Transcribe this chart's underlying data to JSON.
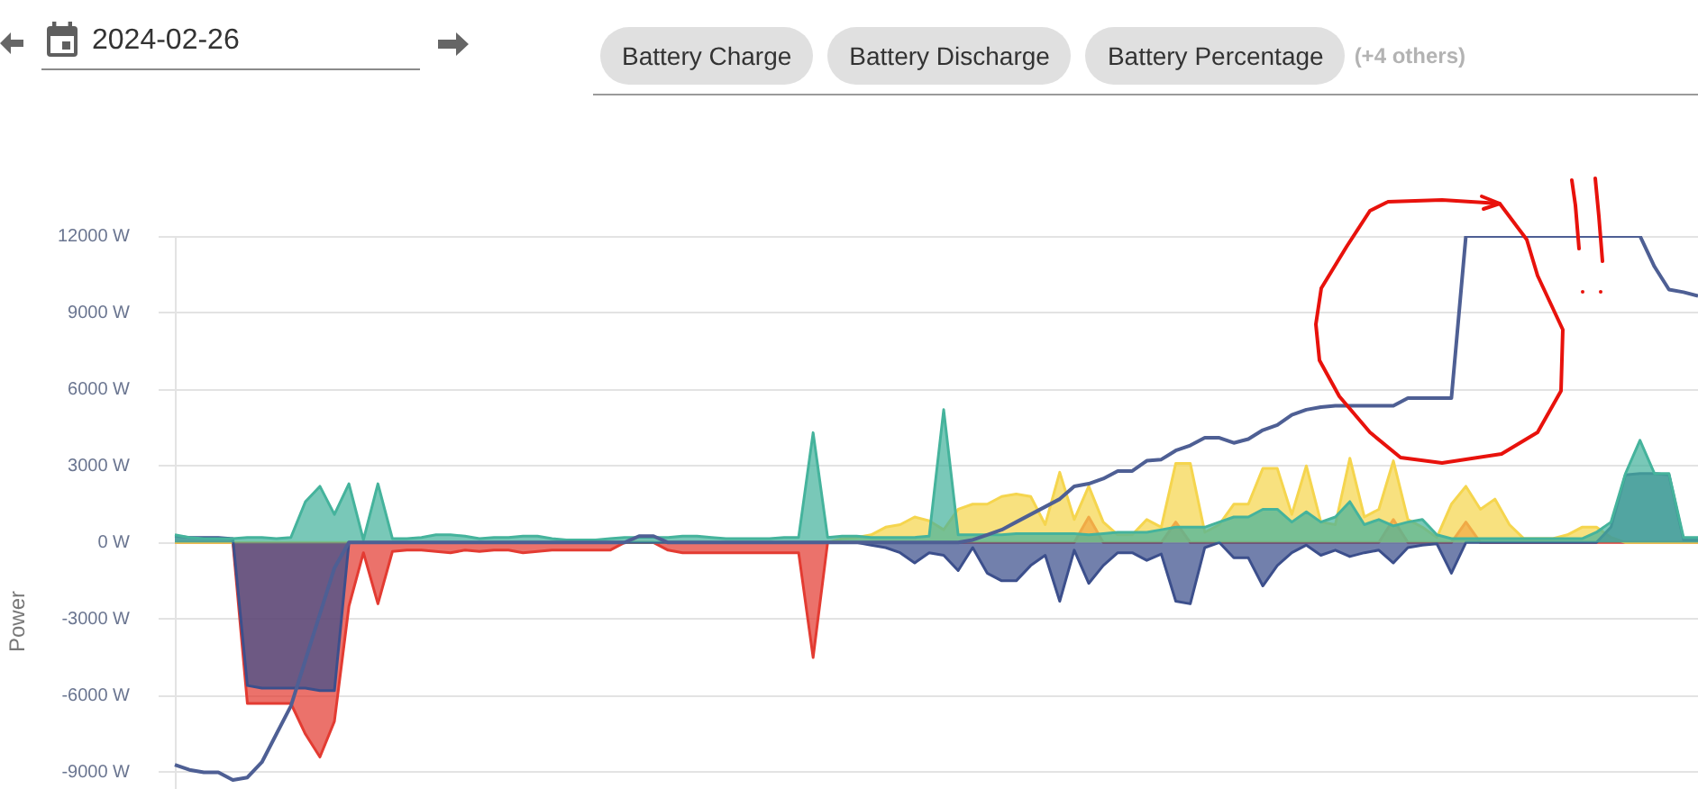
{
  "chart_data": {
    "type": "area",
    "title": "2024-02-26",
    "ylabel": "Power",
    "annotations": [
      "Battery Charge",
      "Battery Discharge",
      "Battery Percentage",
      "(+4 others)"
    ],
    "categories": [
      null,
      null,
      null,
      null,
      null,
      null,
      null,
      null,
      null,
      null,
      null,
      null,
      null,
      null,
      null,
      null,
      null,
      null,
      null,
      null,
      null,
      null,
      null,
      null,
      null,
      null,
      null,
      null,
      null,
      null,
      null,
      null,
      null,
      null,
      null,
      null,
      null,
      null,
      null,
      null,
      null,
      null,
      null,
      null,
      null,
      null,
      null,
      null,
      null,
      null,
      null,
      null,
      null,
      null,
      null,
      null,
      null,
      null,
      null,
      null,
      null,
      null,
      null,
      null,
      null,
      null,
      null,
      null,
      null,
      null,
      null,
      null,
      null,
      null,
      null,
      null,
      null,
      null,
      null,
      null,
      null,
      null,
      null,
      null,
      null,
      null,
      null,
      null,
      null,
      null,
      null,
      null,
      null,
      null,
      null,
      null,
      null,
      null,
      null,
      null,
      null,
      null,
      null,
      null,
      null,
      null
    ],
    "series": [
      {
        "type": "line",
        "color": "#4e5f94",
        "values": [
          -8700,
          -8900,
          -9000,
          -9000,
          -9300,
          -9200,
          -8600,
          -7500,
          -6400,
          -4600,
          -2800,
          -1000,
          0,
          0,
          0,
          0,
          0,
          0,
          0,
          0,
          0,
          0,
          0,
          0,
          0,
          0,
          0,
          0,
          0,
          0,
          0,
          0,
          250,
          250,
          0,
          0,
          0,
          0,
          0,
          0,
          0,
          0,
          0,
          0,
          0,
          0,
          0,
          0,
          0,
          0,
          0,
          0,
          0,
          0,
          0,
          100,
          300,
          500,
          800,
          1100,
          1400,
          1700,
          2200,
          2300,
          2500,
          2800,
          2800,
          3200,
          3250,
          3600,
          3800,
          4100,
          4100,
          3900,
          4050,
          4400,
          4600,
          5000,
          5200,
          5300,
          5350,
          5350,
          5350,
          5350,
          5350,
          5650,
          5650,
          5650,
          5650,
          12000,
          12000,
          12000,
          12000,
          12000,
          12000,
          12000,
          12000,
          12000,
          12000,
          12000,
          12000,
          12000,
          10800,
          9900,
          9800,
          9650
        ]
      },
      {
        "type": "area",
        "color": "#45b39c",
        "values": [
          300,
          200,
          150,
          150,
          150,
          200,
          200,
          150,
          200,
          1600,
          2200,
          1100,
          2300,
          100,
          2300,
          150,
          150,
          200,
          300,
          300,
          250,
          150,
          200,
          200,
          250,
          250,
          150,
          100,
          100,
          100,
          150,
          200,
          200,
          200,
          200,
          250,
          250,
          200,
          150,
          150,
          150,
          150,
          200,
          200,
          4300,
          200,
          250,
          250,
          200,
          200,
          200,
          200,
          250,
          5200,
          300,
          300,
          300,
          300,
          350,
          350,
          350,
          350,
          350,
          300,
          350,
          400,
          400,
          400,
          500,
          600,
          600,
          600,
          800,
          1000,
          1000,
          1300,
          1300,
          800,
          1200,
          800,
          1000,
          1600,
          700,
          900,
          650,
          800,
          900,
          300,
          150,
          150,
          150,
          150,
          150,
          150,
          150,
          150,
          150,
          150,
          400,
          800,
          2700,
          4000,
          2700,
          2700,
          200,
          200
        ]
      },
      {
        "type": "area",
        "color": "#3c4f8c",
        "values": [
          250,
          200,
          200,
          200,
          150,
          -5600,
          -5700,
          -5700,
          -5700,
          -5700,
          -5800,
          -5800,
          0,
          0,
          0,
          0,
          0,
          0,
          0,
          0,
          0,
          0,
          0,
          0,
          0,
          0,
          0,
          0,
          0,
          0,
          0,
          0,
          0,
          0,
          0,
          0,
          0,
          0,
          0,
          0,
          0,
          0,
          0,
          0,
          0,
          0,
          0,
          0,
          -100,
          -200,
          -400,
          -800,
          -400,
          -500,
          -1100,
          -200,
          -1200,
          -1500,
          -1500,
          -900,
          -500,
          -2300,
          -300,
          -1600,
          -900,
          -400,
          -400,
          -700,
          -450,
          -2300,
          -2400,
          -200,
          0,
          -600,
          -600,
          -1700,
          -900,
          -400,
          -100,
          -500,
          -300,
          -550,
          -400,
          -300,
          -800,
          -200,
          -100,
          -50,
          -1200,
          0,
          0,
          0,
          0,
          0,
          0,
          0,
          0,
          0,
          0,
          600,
          2650,
          2700,
          2700,
          2650,
          100,
          100
        ]
      },
      {
        "type": "area",
        "color": "#f5d54e",
        "values": [
          0,
          0,
          0,
          0,
          0,
          0,
          0,
          0,
          0,
          0,
          0,
          0,
          0,
          0,
          0,
          0,
          0,
          0,
          0,
          0,
          0,
          0,
          0,
          0,
          0,
          0,
          0,
          0,
          0,
          0,
          0,
          0,
          0,
          0,
          0,
          0,
          0,
          0,
          0,
          0,
          0,
          0,
          0,
          0,
          0,
          0,
          150,
          200,
          300,
          600,
          700,
          1000,
          850,
          500,
          1300,
          1500,
          1500,
          1800,
          1900,
          1800,
          700,
          2750,
          900,
          2200,
          800,
          300,
          300,
          900,
          600,
          3100,
          3100,
          400,
          700,
          1500,
          1500,
          2900,
          2900,
          1100,
          3000,
          800,
          700,
          3300,
          1000,
          1300,
          3200,
          900,
          600,
          200,
          1500,
          2200,
          1300,
          1700,
          700,
          150,
          150,
          150,
          300,
          600,
          600,
          200,
          0,
          0,
          0,
          0,
          0,
          0
        ]
      },
      {
        "type": "area",
        "color": "#e33b32",
        "values": [
          0,
          0,
          0,
          0,
          0,
          -6300,
          -6300,
          -6300,
          -6300,
          -7500,
          -8400,
          -7000,
          -2500,
          -400,
          -2400,
          -350,
          -300,
          -300,
          -350,
          -400,
          -300,
          -350,
          -300,
          -300,
          -400,
          -350,
          -300,
          -300,
          -300,
          -300,
          -300,
          0,
          0,
          0,
          -300,
          -400,
          -400,
          -400,
          -400,
          -400,
          -400,
          -400,
          -400,
          -400,
          -4500,
          0,
          0,
          0,
          0,
          0,
          0,
          0,
          0,
          0,
          0,
          0,
          0,
          0,
          0,
          0,
          0,
          0,
          0,
          1000,
          0,
          0,
          0,
          0,
          0,
          800,
          0,
          0,
          0,
          0,
          0,
          0,
          0,
          0,
          0,
          0,
          0,
          0,
          0,
          0,
          900,
          0,
          0,
          0,
          0,
          800,
          0,
          0,
          0,
          0,
          0,
          0,
          0,
          0,
          0,
          0,
          0,
          0,
          0,
          0,
          0,
          0
        ]
      }
    ],
    "ylim": [
      -9650,
      12000
    ],
    "yticks": [
      {
        "value": -9000,
        "label": "-9000 W"
      },
      {
        "value": -6000,
        "label": "-6000 W"
      },
      {
        "value": -3000,
        "label": "-3000 W"
      },
      {
        "value": 0,
        "label": "0 W"
      },
      {
        "value": 3000,
        "label": "3000 W"
      },
      {
        "value": 6000,
        "label": "6000 W"
      },
      {
        "value": 9000,
        "label": "9000 W"
      },
      {
        "value": 12000,
        "label": "12000 W"
      }
    ],
    "grid": "y",
    "tick_labels": "y"
  }
}
